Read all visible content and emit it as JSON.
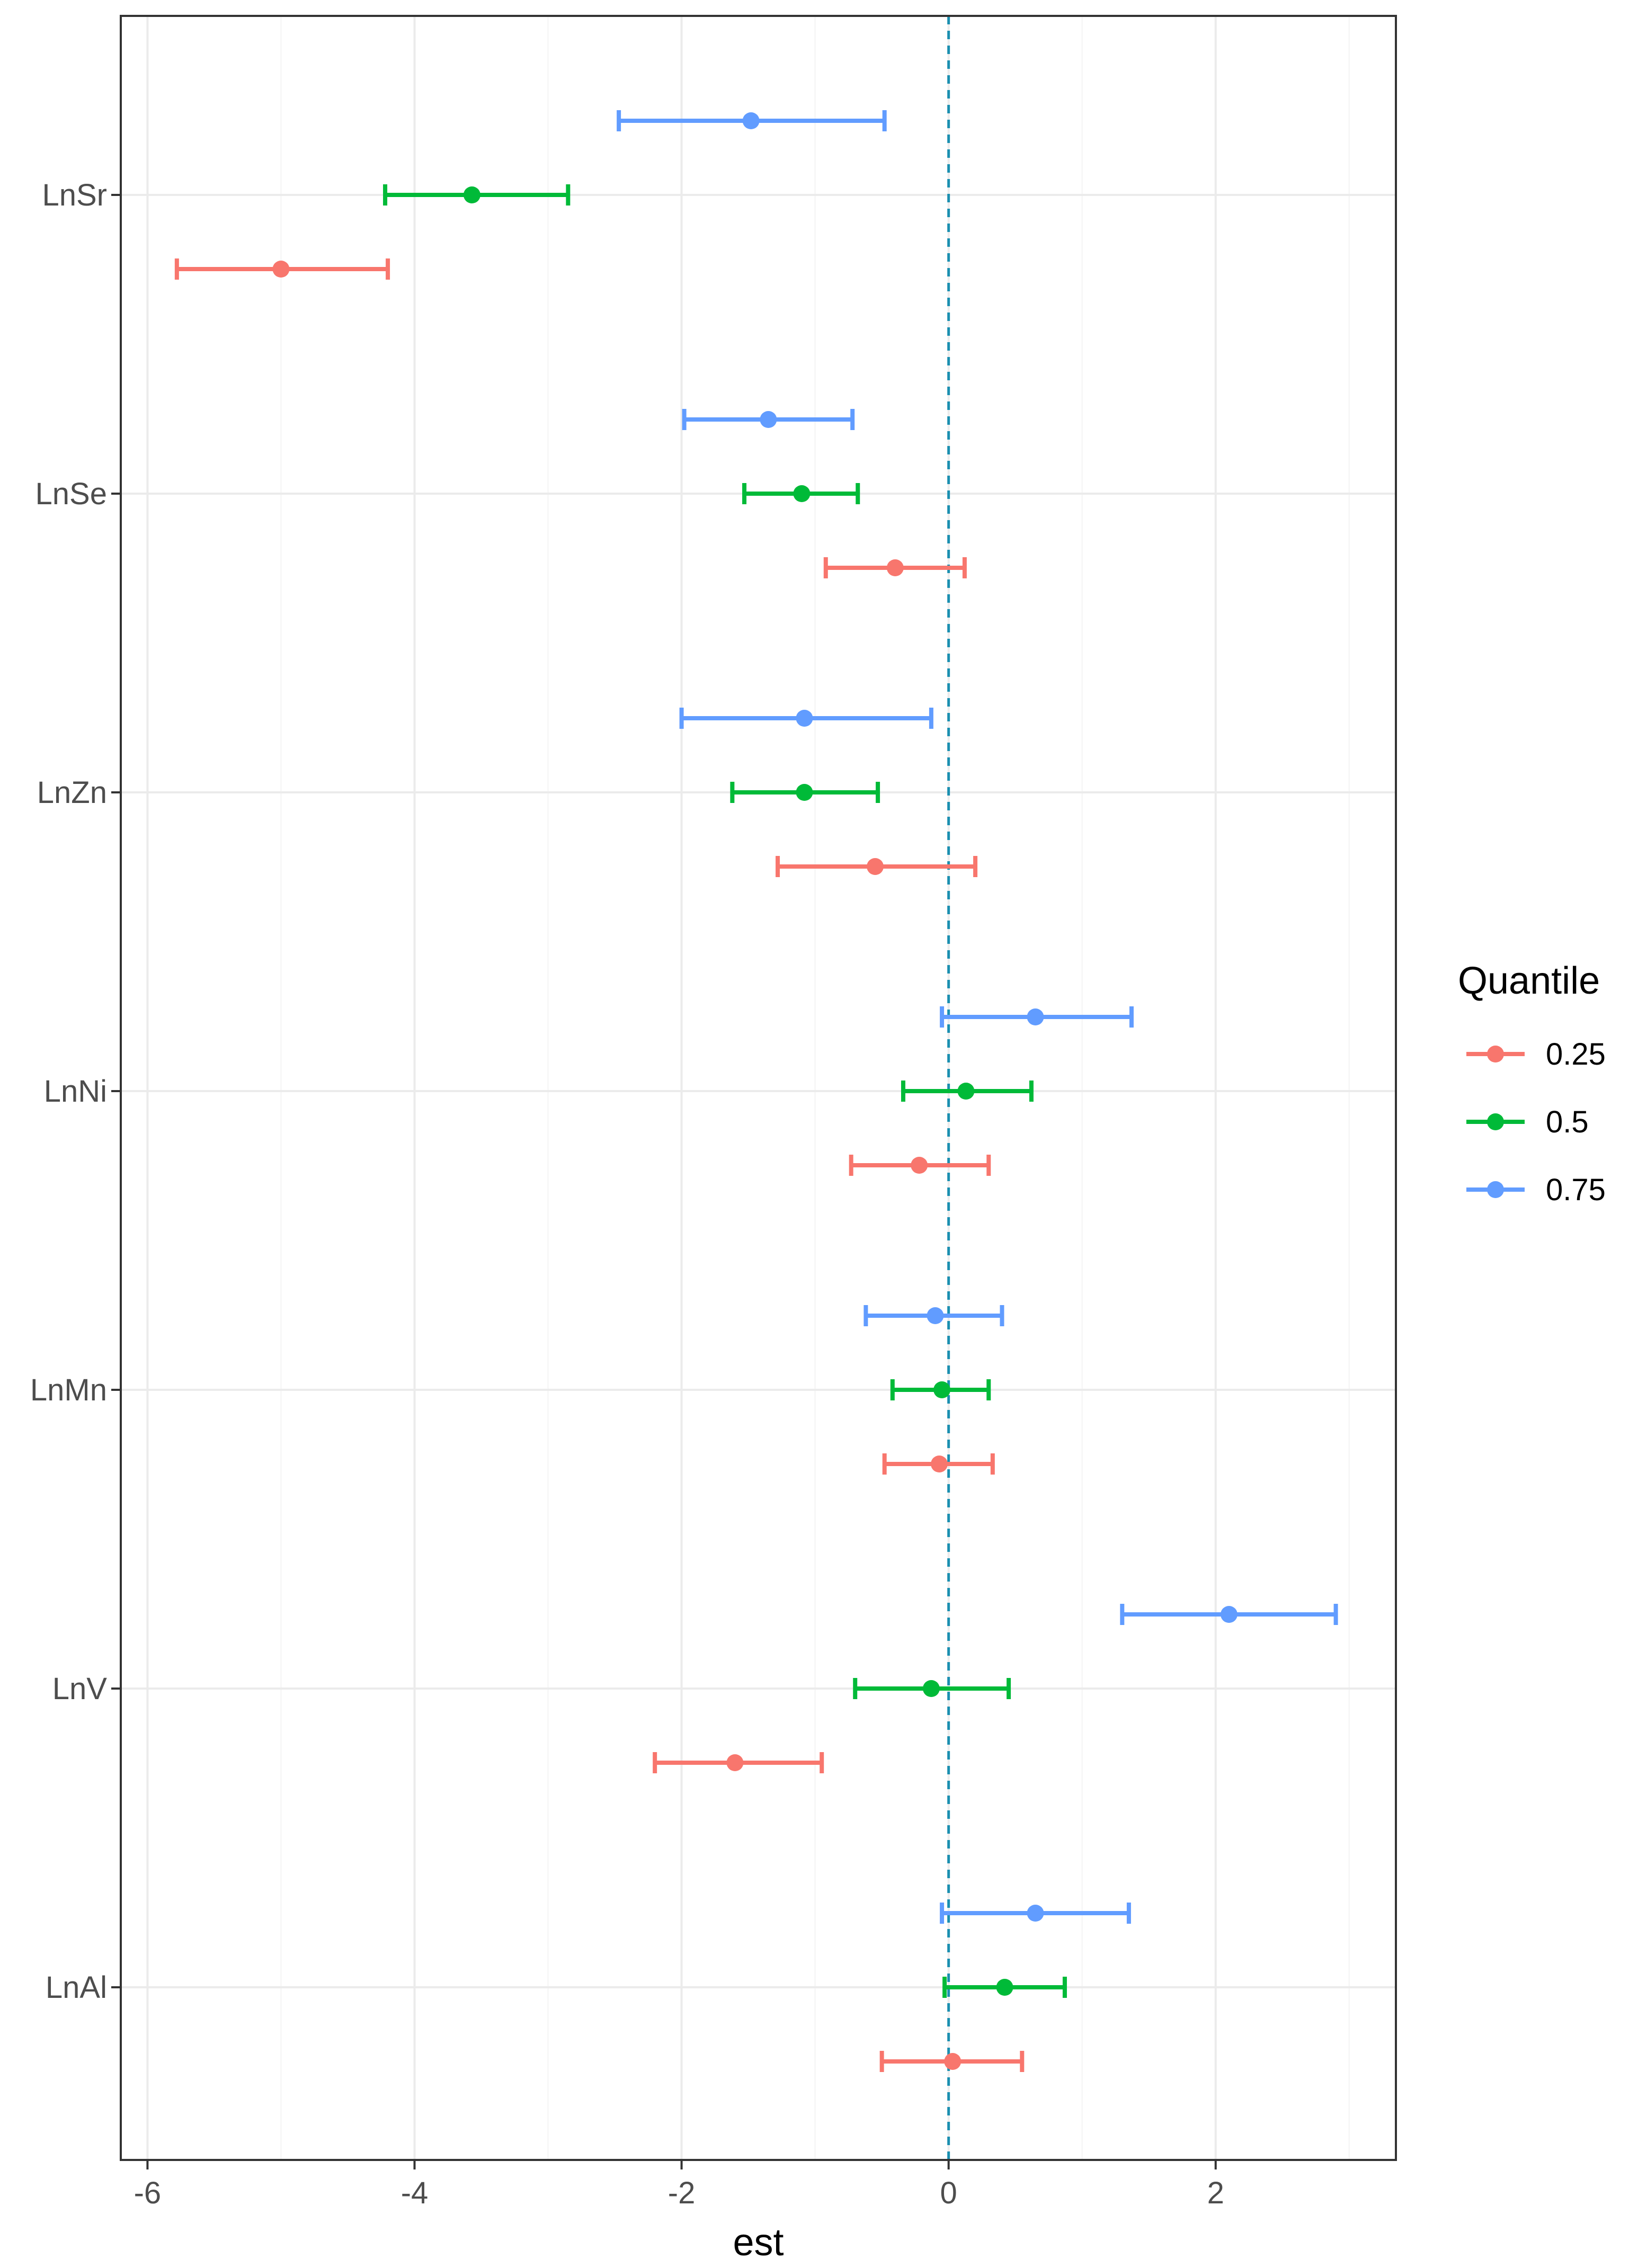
{
  "chart_data": {
    "type": "forest",
    "title": "",
    "xlabel": "est",
    "ylabel": "",
    "xlim": [
      -6.2,
      3.35
    ],
    "xticks": [
      -6,
      -4,
      -2,
      0,
      2
    ],
    "xtick_labels": [
      "-6",
      "-4",
      "-2",
      "0",
      "2"
    ],
    "reference_line": {
      "x": 0,
      "style": "dashed",
      "color": "#1a8fb0"
    },
    "grid": true,
    "categories": [
      "LnSr",
      "LnSe",
      "LnZn",
      "LnNi",
      "LnMn",
      "LnV",
      "LnAl"
    ],
    "legend": {
      "title": "Quantile",
      "position": "right"
    },
    "series": [
      {
        "name": "0.25",
        "color": "#F8766D",
        "est": [
          -5.0,
          -0.4,
          -0.55,
          -0.22,
          -0.07,
          -1.6,
          0.03
        ],
        "low": [
          -5.78,
          -0.92,
          -1.28,
          -0.73,
          -0.48,
          -2.2,
          -0.5
        ],
        "high": [
          -4.2,
          0.12,
          0.2,
          0.3,
          0.33,
          -0.95,
          0.55
        ]
      },
      {
        "name": "0.5",
        "color": "#00BA38",
        "est": [
          -3.57,
          -1.1,
          -1.08,
          0.13,
          -0.05,
          -0.13,
          0.42
        ],
        "low": [
          -4.22,
          -1.53,
          -1.62,
          -0.34,
          -0.42,
          -0.7,
          -0.03
        ],
        "high": [
          -2.85,
          -0.68,
          -0.53,
          0.62,
          0.3,
          0.45,
          0.87
        ]
      },
      {
        "name": "0.75",
        "color": "#619CFF",
        "est": [
          -1.48,
          -1.35,
          -1.08,
          0.65,
          -0.1,
          2.1,
          0.65
        ],
        "low": [
          -2.47,
          -1.98,
          -2.0,
          -0.05,
          -0.62,
          1.3,
          -0.05
        ],
        "high": [
          -0.48,
          -0.72,
          -0.13,
          1.37,
          0.4,
          2.9,
          1.35
        ]
      }
    ]
  }
}
